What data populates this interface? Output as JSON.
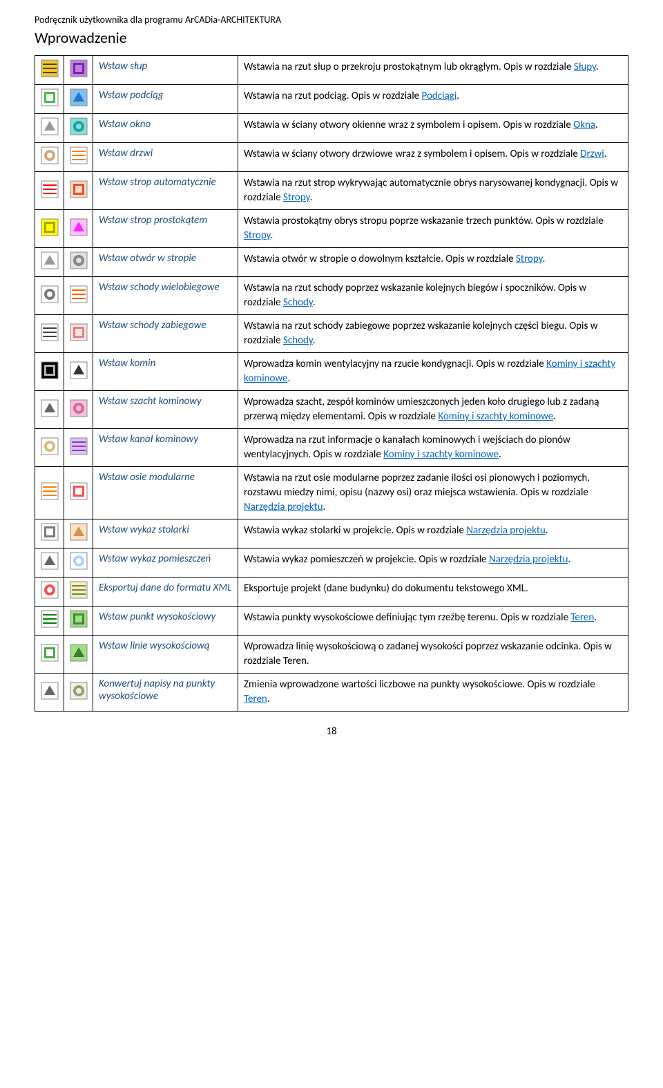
{
  "doc": {
    "title": "Podręcznik użytkownika dla programu ArCADia-ARCHITEKTURA",
    "section": "Wprowadzenie",
    "page": "18"
  },
  "rows": [
    {
      "name": "Wstaw słup",
      "desc_pre": "Wstawia na rzut słup o przekroju prostokątnym lub okrągłym. Opis w rozdziale ",
      "link": "Słupy",
      "desc_post": ".",
      "i1": {
        "bg": "#f4c430",
        "fg": "#4a4a00"
      },
      "i2": {
        "bg": "#c080e0",
        "fg": "#600090"
      }
    },
    {
      "name": "Wstaw podciąg",
      "desc_pre": "Wstawia na rzut podciąg. Opis w rozdziale ",
      "link": "Podciągi",
      "desc_post": ".",
      "i1": {
        "bg": "#ffffff",
        "fg": "#00a000"
      },
      "i2": {
        "bg": "#80c0f0",
        "fg": "#1060c0"
      }
    },
    {
      "name": "Wstaw okno",
      "desc_pre": "Wstawia w ściany otwory okienne wraz z symbolem i opisem. Opis w rozdziale ",
      "link": "Okna",
      "desc_post": ".",
      "i1": {
        "bg": "#ffffff",
        "fg": "#808080"
      },
      "i2": {
        "bg": "#80e0e0",
        "fg": "#008080"
      }
    },
    {
      "name": "Wstaw drzwi",
      "desc_pre": "Wstawia w ściany otwory drzwiowe wraz z symbolem i opisem. Opis w rozdziale ",
      "link": "Drzwi",
      "desc_post": ".",
      "i1": {
        "bg": "#ffffff",
        "fg": "#c08040"
      },
      "i2": {
        "bg": "#ffffff",
        "fg": "#ff8000"
      }
    },
    {
      "name": "Wstaw strop automatycznie",
      "desc_pre": "Wstawia na rzut strop wykrywając automatycznie obrys narysowanej kondygnacji. Opis w rozdziale ",
      "link": "Stropy",
      "desc_post": ".",
      "i1": {
        "bg": "#ffffff",
        "fg": "#ff0000"
      },
      "i2": {
        "bg": "#f0e0c0",
        "fg": "#ff0000"
      }
    },
    {
      "name": "Wstaw strop prostokątem",
      "desc_pre": "Wstawia prostokątny obrys stropu poprze wskazanie trzech punktów. Opis w rozdziale ",
      "link": "Stropy",
      "desc_post": ".",
      "i1": {
        "bg": "#ffff00",
        "fg": "#808000"
      },
      "i2": {
        "bg": "#ffc0ff",
        "fg": "#ff00ff"
      }
    },
    {
      "name": "Wstaw otwór w stropie",
      "desc_pre": "Wstawia otwór w stropie o dowolnym kształcie. Opis w rozdziale ",
      "link": "Stropy",
      "desc_post": ".",
      "i1": {
        "bg": "#ffffff",
        "fg": "#808080"
      },
      "i2": {
        "bg": "#e0e0e0",
        "fg": "#606060"
      }
    },
    {
      "name": "Wstaw schody wielobiegowe",
      "desc_pre": "Wstawia na rzut schody poprzez wskazanie kolejnych biegów i spoczników. Opis w rozdziale ",
      "link": "Schody",
      "desc_post": ".",
      "i1": {
        "bg": "#ffffff",
        "fg": "#404040"
      },
      "i2": {
        "bg": "#ffffff",
        "fg": "#ff6000"
      }
    },
    {
      "name": "Wstaw schody zabiegowe",
      "desc_pre": "Wstawia na rzut schody zabiegowe poprzez wskazanie kolejnych części biegu. Opis w rozdziale ",
      "link": "Schody",
      "desc_post": ".",
      "i1": {
        "bg": "#ffffff",
        "fg": "#404040"
      },
      "i2": {
        "bg": "#ffe0e0",
        "fg": "#c06060"
      }
    },
    {
      "name": "Wstaw komin",
      "desc_pre": "Wprowadza komin wentylacyjny na rzucie kondygnacji. Opis w rozdziale ",
      "link": "Kominy i szachty kominowe",
      "desc_post": ".",
      "i1": {
        "bg": "#000000",
        "fg": "#ffffff"
      },
      "i2": {
        "bg": "#ffffff",
        "fg": "#000000"
      }
    },
    {
      "name": "Wstaw szacht kominowy",
      "desc_pre": "Wprowadza szacht, zespół kominów umieszczonych jeden koło drugiego lub z zadaną przerwą między elementami. Opis w rozdziale ",
      "link": "Kominy i szachty kominowe",
      "desc_post": ".",
      "i1": {
        "bg": "#ffffff",
        "fg": "#404040"
      },
      "i2": {
        "bg": "#ffc0e0",
        "fg": "#c04080"
      }
    },
    {
      "name": "Wstaw kanał kominowy",
      "desc_pre": "Wprowadza na rzut informacje o kanałach kominowych i wejściach do pionów wentylacyjnych. Opis w rozdziale ",
      "link": "Kominy i szachty kominowe",
      "desc_post": ".",
      "i1": {
        "bg": "#ffffff",
        "fg": "#c0a040"
      },
      "i2": {
        "bg": "#e0c0ff",
        "fg": "#8040c0"
      }
    },
    {
      "name": "Wstaw osie modularne",
      "desc_pre": "Wstawia na rzut osie modularne poprzez zadanie ilości osi pionowych i poziomych, rozstawu miedzy nimi, opisu (nazwy osi) oraz miejsca wstawienia. Opis w rozdziale ",
      "link": "Narzędzia projektu",
      "desc_post": ".",
      "i1": {
        "bg": "#ffffff",
        "fg": "#ff8000"
      },
      "i2": {
        "bg": "#ffffff",
        "fg": "#ff0000"
      }
    },
    {
      "name": "Wstaw wykaz stolarki",
      "desc_pre": "Wstawia wykaz stolarki w projekcie. Opis w rozdziale ",
      "link": "Narzędzia projektu",
      "desc_post": ".",
      "i1": {
        "bg": "#ffffff",
        "fg": "#404040"
      },
      "i2": {
        "bg": "#ffe0c0",
        "fg": "#c08040"
      }
    },
    {
      "name": "Wstaw wykaz pomieszczeń",
      "desc_pre": "Wstawia wykaz pomieszczeń w projekcie. Opis w rozdziale ",
      "link": "Narzędzia projektu",
      "desc_post": ".",
      "i1": {
        "bg": "#ffffff",
        "fg": "#404040"
      },
      "i2": {
        "bg": "#ffffff",
        "fg": "#80c0ff"
      }
    },
    {
      "name": "Eksportuj dane do formatu XML",
      "desc_pre": "Eksportuje projekt (dane budynku) do dokumentu tekstowego ",
      "link": "",
      "desc_post": "XML.",
      "i1": {
        "bg": "#ffffff",
        "fg": "#ff0000"
      },
      "i2": {
        "bg": "#f0f0c0",
        "fg": "#808040"
      }
    },
    {
      "name": "Wstaw punkt wysokościowy",
      "desc_pre": "Wstawia punkty wysokościowe definiując tym rzeźbę terenu. Opis w rozdziale ",
      "link": "Teren",
      "desc_post": ".",
      "i1": {
        "bg": "#ffffff",
        "fg": "#008000"
      },
      "i2": {
        "bg": "#a0e080",
        "fg": "#206020"
      }
    },
    {
      "name": "Wstaw linie wysokościową",
      "desc_pre": "Wprowadza linię wysokościową o zadanej wysokości poprzez wskazanie odcinka. Opis w rozdziale Teren.",
      "link": "",
      "desc_post": "",
      "i1": {
        "bg": "#ffffff",
        "fg": "#008000"
      },
      "i2": {
        "bg": "#a0e080",
        "fg": "#206020"
      }
    },
    {
      "name": "Konwertuj napisy na punkty wysokościowe",
      "desc_pre": "Zmienia wprowadzone wartości liczbowe na punkty wysokościowe. Opis w rozdziale ",
      "link": "Teren",
      "desc_post": ".",
      "i1": {
        "bg": "#ffffff",
        "fg": "#404040"
      },
      "i2": {
        "bg": "#f0f0e0",
        "fg": "#608040"
      }
    }
  ]
}
